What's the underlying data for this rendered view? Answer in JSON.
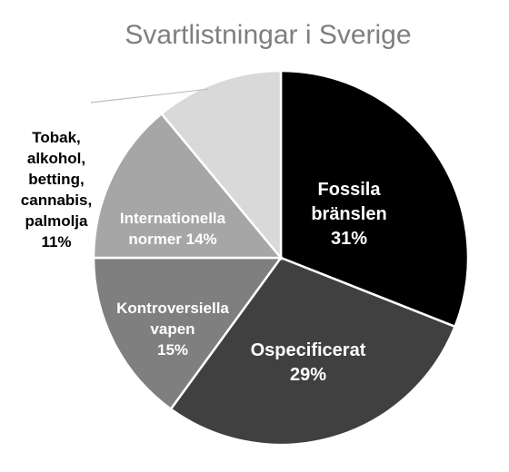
{
  "chart_data": {
    "type": "pie",
    "title": "Svartlistningar i Sverige",
    "slices": [
      {
        "lines": [
          "Fossila",
          "bränslen",
          "31%"
        ],
        "value": 31,
        "color": "#000000",
        "text_color": "#ffffff",
        "label_placement": "inside"
      },
      {
        "lines": [
          "Ospecificerat",
          "29%"
        ],
        "value": 29,
        "color": "#404040",
        "text_color": "#ffffff",
        "label_placement": "inside"
      },
      {
        "lines": [
          "Kontroversiella",
          "vapen",
          "15%"
        ],
        "value": 15,
        "color": "#7f7f7f",
        "text_color": "#ffffff",
        "label_placement": "inside"
      },
      {
        "lines": [
          "Internationella",
          "normer 14%"
        ],
        "value": 14,
        "color": "#a6a6a6",
        "text_color": "#ffffff",
        "label_placement": "inside"
      },
      {
        "lines": [
          "Tobak,",
          "alkohol,",
          "betting,",
          "cannabis,",
          "palmolja",
          "11%"
        ],
        "value": 11,
        "color": "#d9d9d9",
        "text_color": "#000000",
        "label_placement": "outside-left"
      }
    ]
  }
}
